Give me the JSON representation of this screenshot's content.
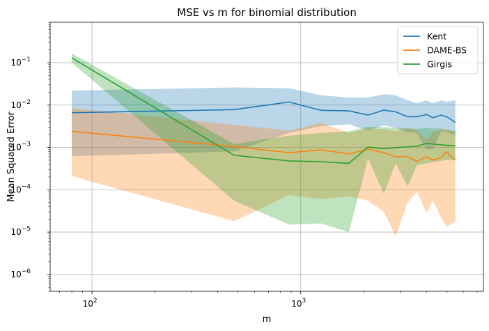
{
  "chart_data": {
    "type": "line",
    "title": "MSE vs m for binomial distribution",
    "xlabel": "m",
    "ylabel": "Mean Squared Error",
    "xscale": "log",
    "yscale": "log",
    "xlim": [
      63,
      7500
    ],
    "ylim": [
      4e-07,
      0.9
    ],
    "grid": true,
    "legend_position": "top-right",
    "x_ticks": [
      {
        "value": 100,
        "base": "10",
        "exp": "2"
      },
      {
        "value": 1000,
        "base": "10",
        "exp": "3"
      }
    ],
    "y_ticks": [
      {
        "value": 1e-06,
        "base": "10",
        "exp": "−6"
      },
      {
        "value": 1e-05,
        "base": "10",
        "exp": "−5"
      },
      {
        "value": 0.0001,
        "base": "10",
        "exp": "−4"
      },
      {
        "value": 0.001,
        "base": "10",
        "exp": "−3"
      },
      {
        "value": 0.01,
        "base": "10",
        "exp": "−2"
      },
      {
        "value": 0.1,
        "base": "10",
        "exp": "−1"
      }
    ],
    "series": [
      {
        "name": "Kent",
        "color": "#1f77b4",
        "x": [
          80,
          480,
          880,
          1250,
          1700,
          2100,
          2500,
          2850,
          3250,
          3600,
          4000,
          4300,
          4700,
          5000,
          5500
        ],
        "y": [
          0.0066,
          0.0078,
          0.0118,
          0.0075,
          0.0073,
          0.0058,
          0.0076,
          0.0069,
          0.0053,
          0.0053,
          0.006,
          0.005,
          0.0058,
          0.0053,
          0.0039
        ],
        "upper": [
          0.022,
          0.026,
          0.025,
          0.017,
          0.015,
          0.015,
          0.018,
          0.017,
          0.013,
          0.011,
          0.013,
          0.011,
          0.013,
          0.012,
          0.013
        ],
        "lower": [
          0.00062,
          0.0008,
          0.0022,
          0.0032,
          0.0035,
          0.0025,
          0.0033,
          0.0029,
          0.0023,
          0.0022,
          0.0009,
          0.0009,
          0.0024,
          0.0023,
          0.0019
        ]
      },
      {
        "name": "DAME-BS",
        "color": "#ff7f0e",
        "x": [
          80,
          480,
          880,
          1250,
          1700,
          2100,
          2500,
          2850,
          3250,
          3600,
          4000,
          4300,
          4700,
          5000,
          5500
        ],
        "y": [
          0.0024,
          0.00105,
          0.00075,
          0.00088,
          0.0007,
          0.00092,
          0.00075,
          0.0006,
          0.0006,
          0.00047,
          0.0006,
          0.0005,
          0.00058,
          0.00078,
          0.0005
        ],
        "upper": [
          0.0085,
          0.0034,
          0.0025,
          0.0038,
          0.0022,
          0.0028,
          0.0027,
          0.0024,
          0.0029,
          0.0026,
          0.0015,
          0.0024,
          0.0025,
          0.0028,
          0.0022
        ],
        "lower": [
          0.00021,
          1.8e-05,
          7.5e-05,
          6e-05,
          7e-05,
          5.5e-05,
          3e-05,
          8e-06,
          5e-05,
          9e-05,
          2.8e-05,
          5.5e-05,
          2.2e-05,
          1.3e-05,
          1.8e-05
        ]
      },
      {
        "name": "Girgis",
        "color": "#2ca02c",
        "x": [
          80,
          480,
          880,
          1250,
          1700,
          2100,
          2500,
          2850,
          3250,
          3600,
          4000,
          4300,
          4700,
          5000,
          5500
        ],
        "y": [
          0.13,
          0.00065,
          0.00048,
          0.00046,
          0.00042,
          0.00102,
          0.00093,
          0.00099,
          0.00103,
          0.00106,
          0.00125,
          0.0012,
          0.00115,
          0.00112,
          0.0011
        ],
        "upper": [
          0.165,
          0.0012,
          0.0019,
          0.0022,
          0.0024,
          0.0031,
          0.003,
          0.0029,
          0.0028,
          0.0027,
          0.0029,
          0.0028,
          0.0028,
          0.0025,
          0.0025
        ],
        "lower": [
          0.1,
          5.5e-05,
          1.5e-05,
          1.6e-05,
          1e-05,
          0.00055,
          8e-05,
          0.00042,
          0.00012,
          0.00038,
          0.00042,
          0.00045,
          0.00048,
          0.0005,
          0.0005
        ]
      }
    ]
  }
}
